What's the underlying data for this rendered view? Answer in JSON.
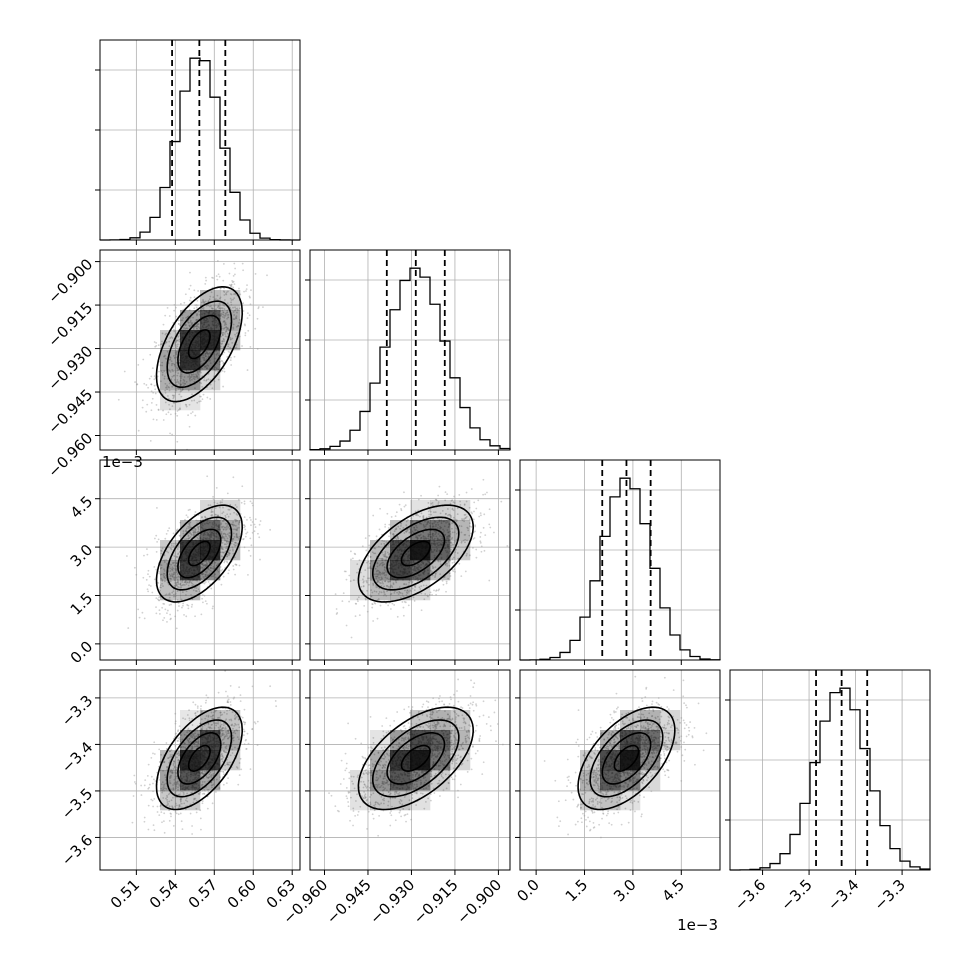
{
  "chart_data": {
    "type": "corner",
    "parameters": 4,
    "grid": true,
    "colors": {
      "line": "#000000",
      "grid": "#b0b0b0",
      "scatter": "#9a9a9a",
      "fill": "#000000"
    },
    "offset_texts": {
      "row2_y": "1e−3",
      "col2_x": "1e−3"
    },
    "ranges": [
      [
        0.482,
        0.636
      ],
      [
        -0.965,
        -0.896
      ],
      [
        -0.0005,
        0.0057
      ],
      [
        -3.67,
        -3.24
      ]
    ],
    "ticks": [
      {
        "values": [
          0.51,
          0.54,
          0.57,
          0.6,
          0.63
        ],
        "labels": [
          "0.51",
          "0.54",
          "0.57",
          "0.60",
          "0.63"
        ]
      },
      {
        "values": [
          -0.96,
          -0.945,
          -0.93,
          -0.915,
          -0.9
        ],
        "labels": [
          "−0.960",
          "−0.945",
          "−0.930",
          "−0.915",
          "−0.900"
        ]
      },
      {
        "values": [
          0.0,
          0.0015,
          0.003,
          0.0045
        ],
        "labels": [
          "0.0",
          "1.5",
          "3.0",
          "4.5"
        ]
      },
      {
        "values": [
          -3.6,
          -3.5,
          -3.4,
          -3.3
        ],
        "labels": [
          "−3.6",
          "−3.5",
          "−3.4",
          "−3.3"
        ]
      }
    ],
    "stats": [
      {
        "mean": 0.5585,
        "sd": 0.0165,
        "q": [
          0.5375,
          0.5585,
          0.5785
        ]
      },
      {
        "mean": -0.9285,
        "sd": 0.0099,
        "q": [
          -0.9385,
          -0.9285,
          -0.9185
        ]
      },
      {
        "mean": 0.0028,
        "sd": 0.00075,
        "q": [
          0.00205,
          0.0028,
          0.00355
        ]
      },
      {
        "mean": -3.43,
        "sd": 0.055,
        "q": [
          -3.485,
          -3.43,
          -3.375
        ]
      }
    ],
    "correlation": 0.55,
    "hist_bins": 20
  }
}
